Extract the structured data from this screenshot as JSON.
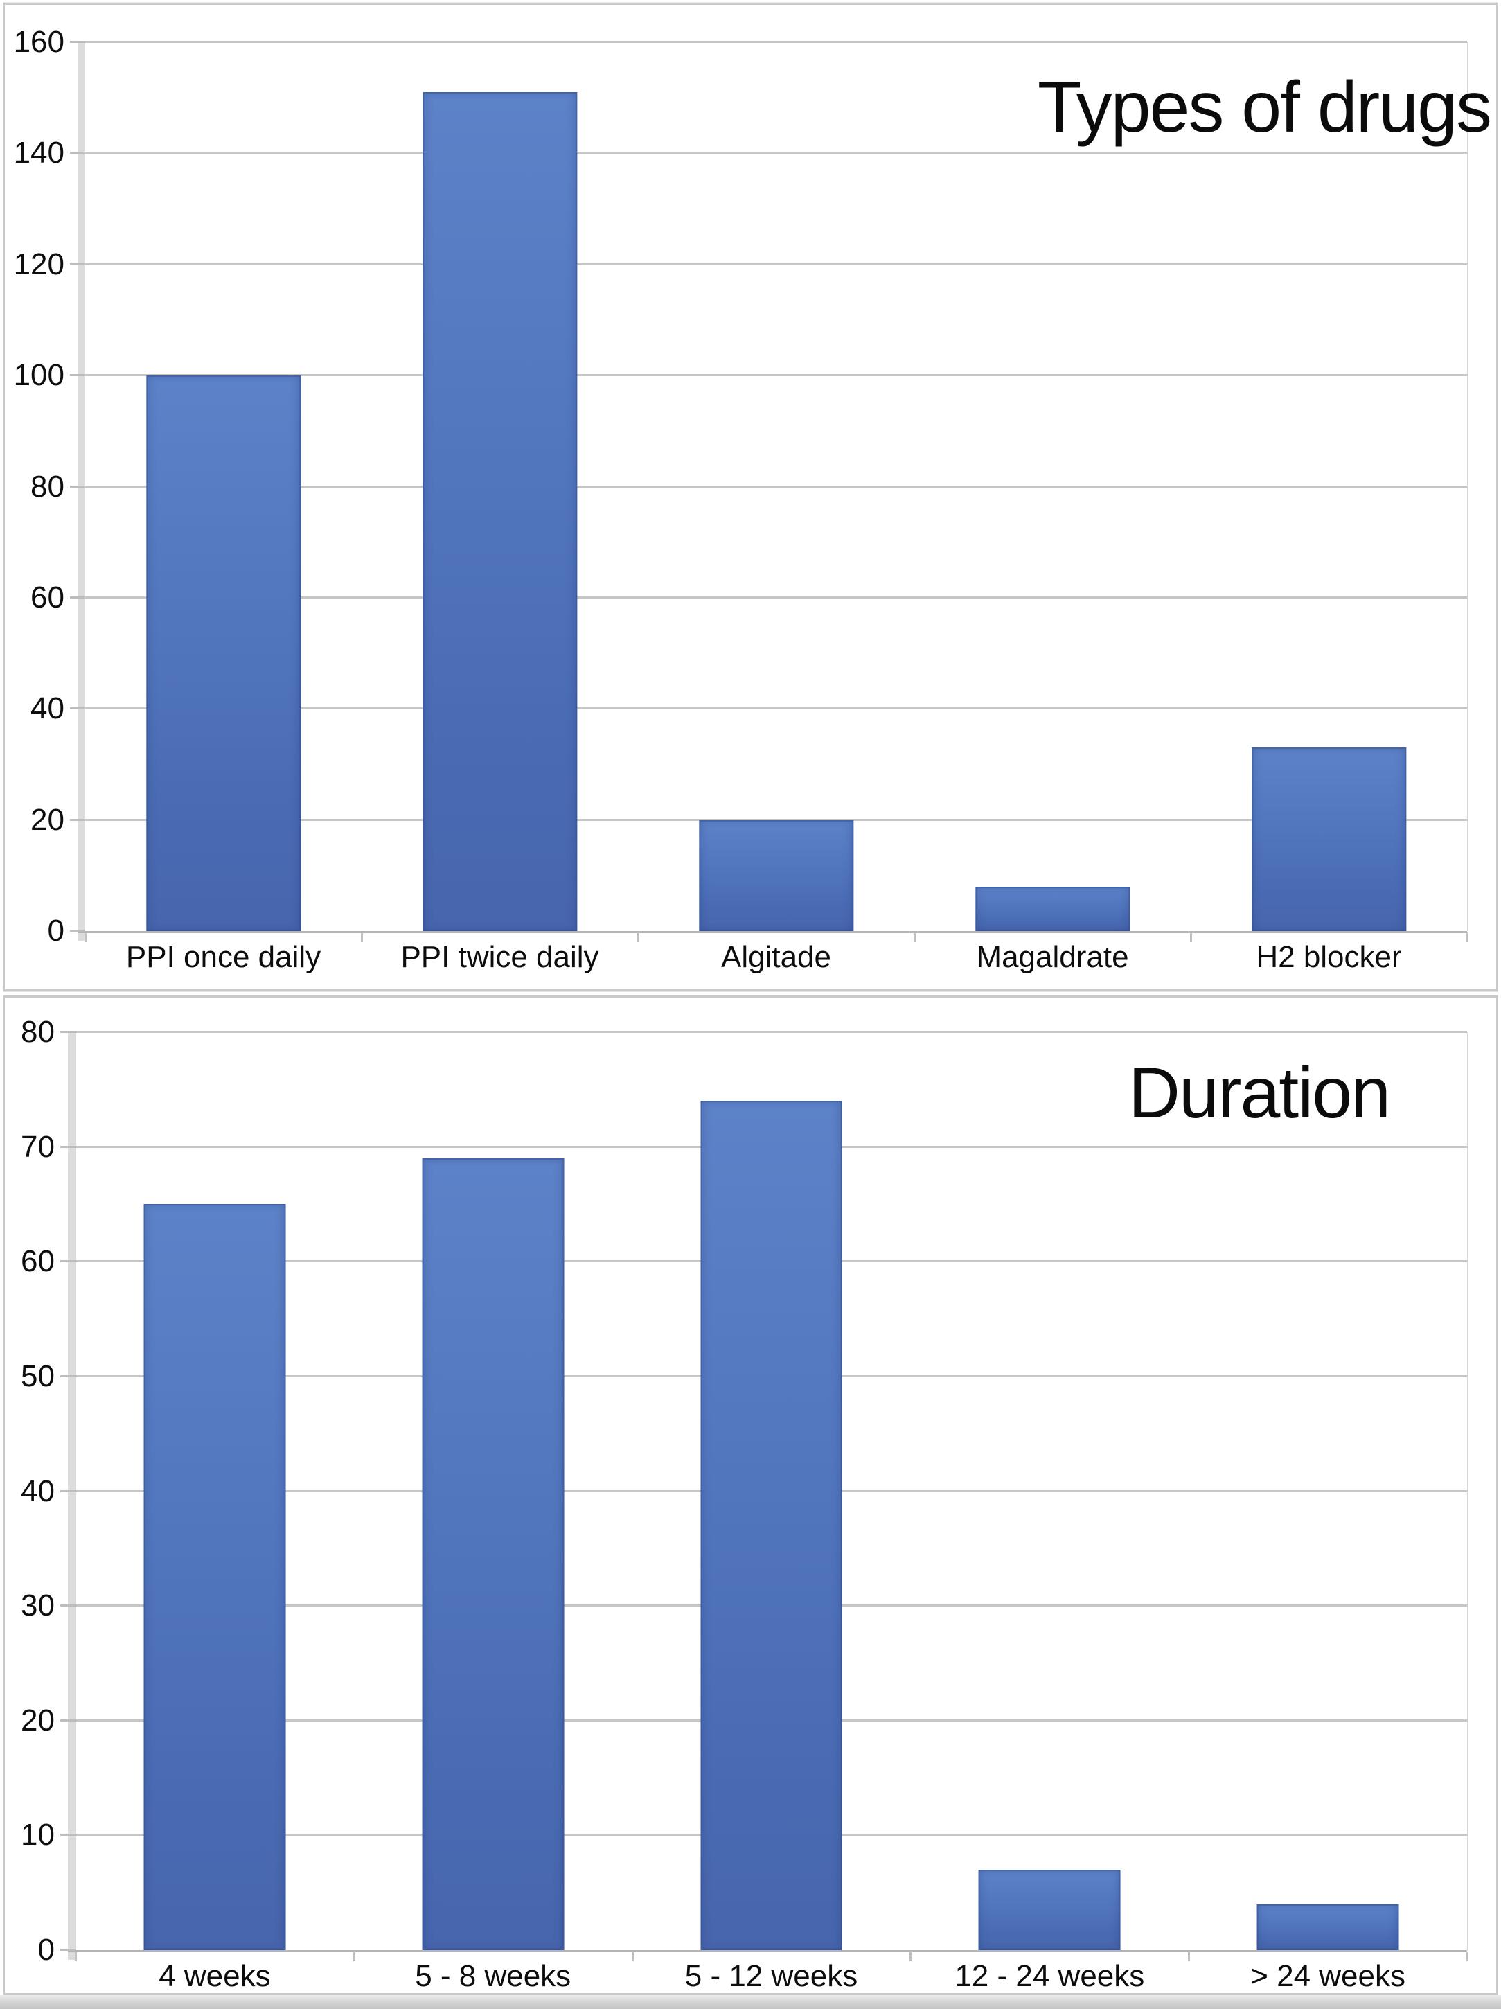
{
  "figure_title": "Two stacked bar charts",
  "style": {
    "bar_color_mid": "#5577bb",
    "gridline_color": "#c6c6c6",
    "axis_color": "#b5b5b5",
    "panel_border_color": "#c9c9c9",
    "text_color": "#0c0c0c",
    "bottom_band_color": "#c4c4c4"
  },
  "chart_data": [
    {
      "type": "bar",
      "title": "Types of drugs",
      "categories": [
        "PPI once daily",
        "PPI twice daily",
        "Algitade",
        "Magaldrate",
        "H2 blocker"
      ],
      "values": [
        100,
        151,
        20,
        8,
        33
      ],
      "xlabel": "",
      "ylabel": "",
      "ylim": [
        0,
        160
      ],
      "ytick_step": 20,
      "yticklabels": [
        "0",
        "20",
        "40",
        "60",
        "80",
        "100",
        "120",
        "140",
        "160"
      ],
      "grid": true,
      "legend": false,
      "layout": {
        "title_position": "top-right",
        "bar_width_pct": 11.2
      }
    },
    {
      "type": "bar",
      "title": "Duration",
      "categories": [
        "4 weeks",
        "5 - 8 weeks",
        "5 - 12 weeks",
        "12 - 24 weeks",
        "> 24 weeks"
      ],
      "values": [
        65,
        69,
        74,
        7,
        4
      ],
      "xlabel": "",
      "ylabel": "",
      "ylim": [
        0,
        80
      ],
      "ytick_step": 10,
      "yticklabels": [
        "0",
        "10",
        "20",
        "30",
        "40",
        "50",
        "60",
        "70",
        "80"
      ],
      "grid": true,
      "legend": false,
      "layout": {
        "title_position": "top-right",
        "bar_width_pct": 10.2
      }
    }
  ]
}
